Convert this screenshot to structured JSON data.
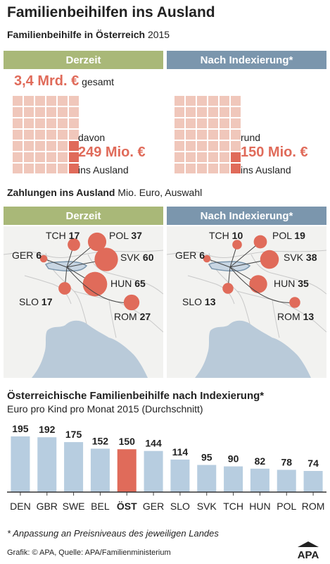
{
  "title": "Familienbeihilfen ins Ausland",
  "subtitle": {
    "bold": "Familienbeihilfe in Österreich",
    "year": "2015"
  },
  "panels": {
    "current": "Derzeit",
    "indexed": "Nach Indexierung*"
  },
  "colors": {
    "green": "#a9b878",
    "blue": "#7b96ad",
    "red": "#e06b5a",
    "pink": "#f0c7bb",
    "bar": "#b7cde0",
    "map_sea": "#b9cad9",
    "land": "#f2f2f0"
  },
  "totals": {
    "amount": "3,4 Mrd. €",
    "suffix": "gesamt"
  },
  "current_share": {
    "prefix": "davon",
    "amount": "249 Mio. €",
    "suffix": "ins Ausland"
  },
  "indexed_share": {
    "prefix": "rund",
    "amount": "150 Mio. €",
    "suffix": "ins Ausland"
  },
  "payments": {
    "title_bold": "Zahlungen ins Ausland",
    "title_rest": "Mio. Euro, Auswahl"
  },
  "map_current": [
    {
      "code": "TCH",
      "value": 17
    },
    {
      "code": "POL",
      "value": 37
    },
    {
      "code": "GER",
      "value": 6
    },
    {
      "code": "SVK",
      "value": 60
    },
    {
      "code": "HUN",
      "value": 65
    },
    {
      "code": "SLO",
      "value": 17
    },
    {
      "code": "ROM",
      "value": 27
    }
  ],
  "map_indexed": [
    {
      "code": "TCH",
      "value": 10
    },
    {
      "code": "POL",
      "value": 19
    },
    {
      "code": "GER",
      "value": 6
    },
    {
      "code": "SVK",
      "value": 38
    },
    {
      "code": "HUN",
      "value": 35
    },
    {
      "code": "SLO",
      "value": 13
    },
    {
      "code": "ROM",
      "value": 13
    }
  ],
  "bar_section": {
    "title": "Österreichische Familienbeihilfe nach Indexierung*",
    "subtitle": "Euro pro Kind pro Monat 2015 (Durchschnitt)"
  },
  "chart_data": {
    "type": "bar",
    "title": "Österreichische Familienbeihilfe nach Indexierung*",
    "subtitle": "Euro pro Kind pro Monat 2015 (Durchschnitt)",
    "categories": [
      "DEN",
      "GBR",
      "SWE",
      "BEL",
      "ÖST",
      "GER",
      "SLO",
      "SVK",
      "TCH",
      "HUN",
      "POL",
      "ROM"
    ],
    "values": [
      195,
      192,
      175,
      152,
      150,
      144,
      114,
      95,
      90,
      82,
      78,
      74
    ],
    "highlight": "ÖST",
    "ylim": [
      0,
      195
    ],
    "grid": false,
    "xlabel": "",
    "ylabel": ""
  },
  "footnote": "* Anpassung an Preisniveaus des jeweiligen Landes",
  "credit": "Grafik: © APA, Quelle: APA/Familienministerium",
  "logo": "APA"
}
